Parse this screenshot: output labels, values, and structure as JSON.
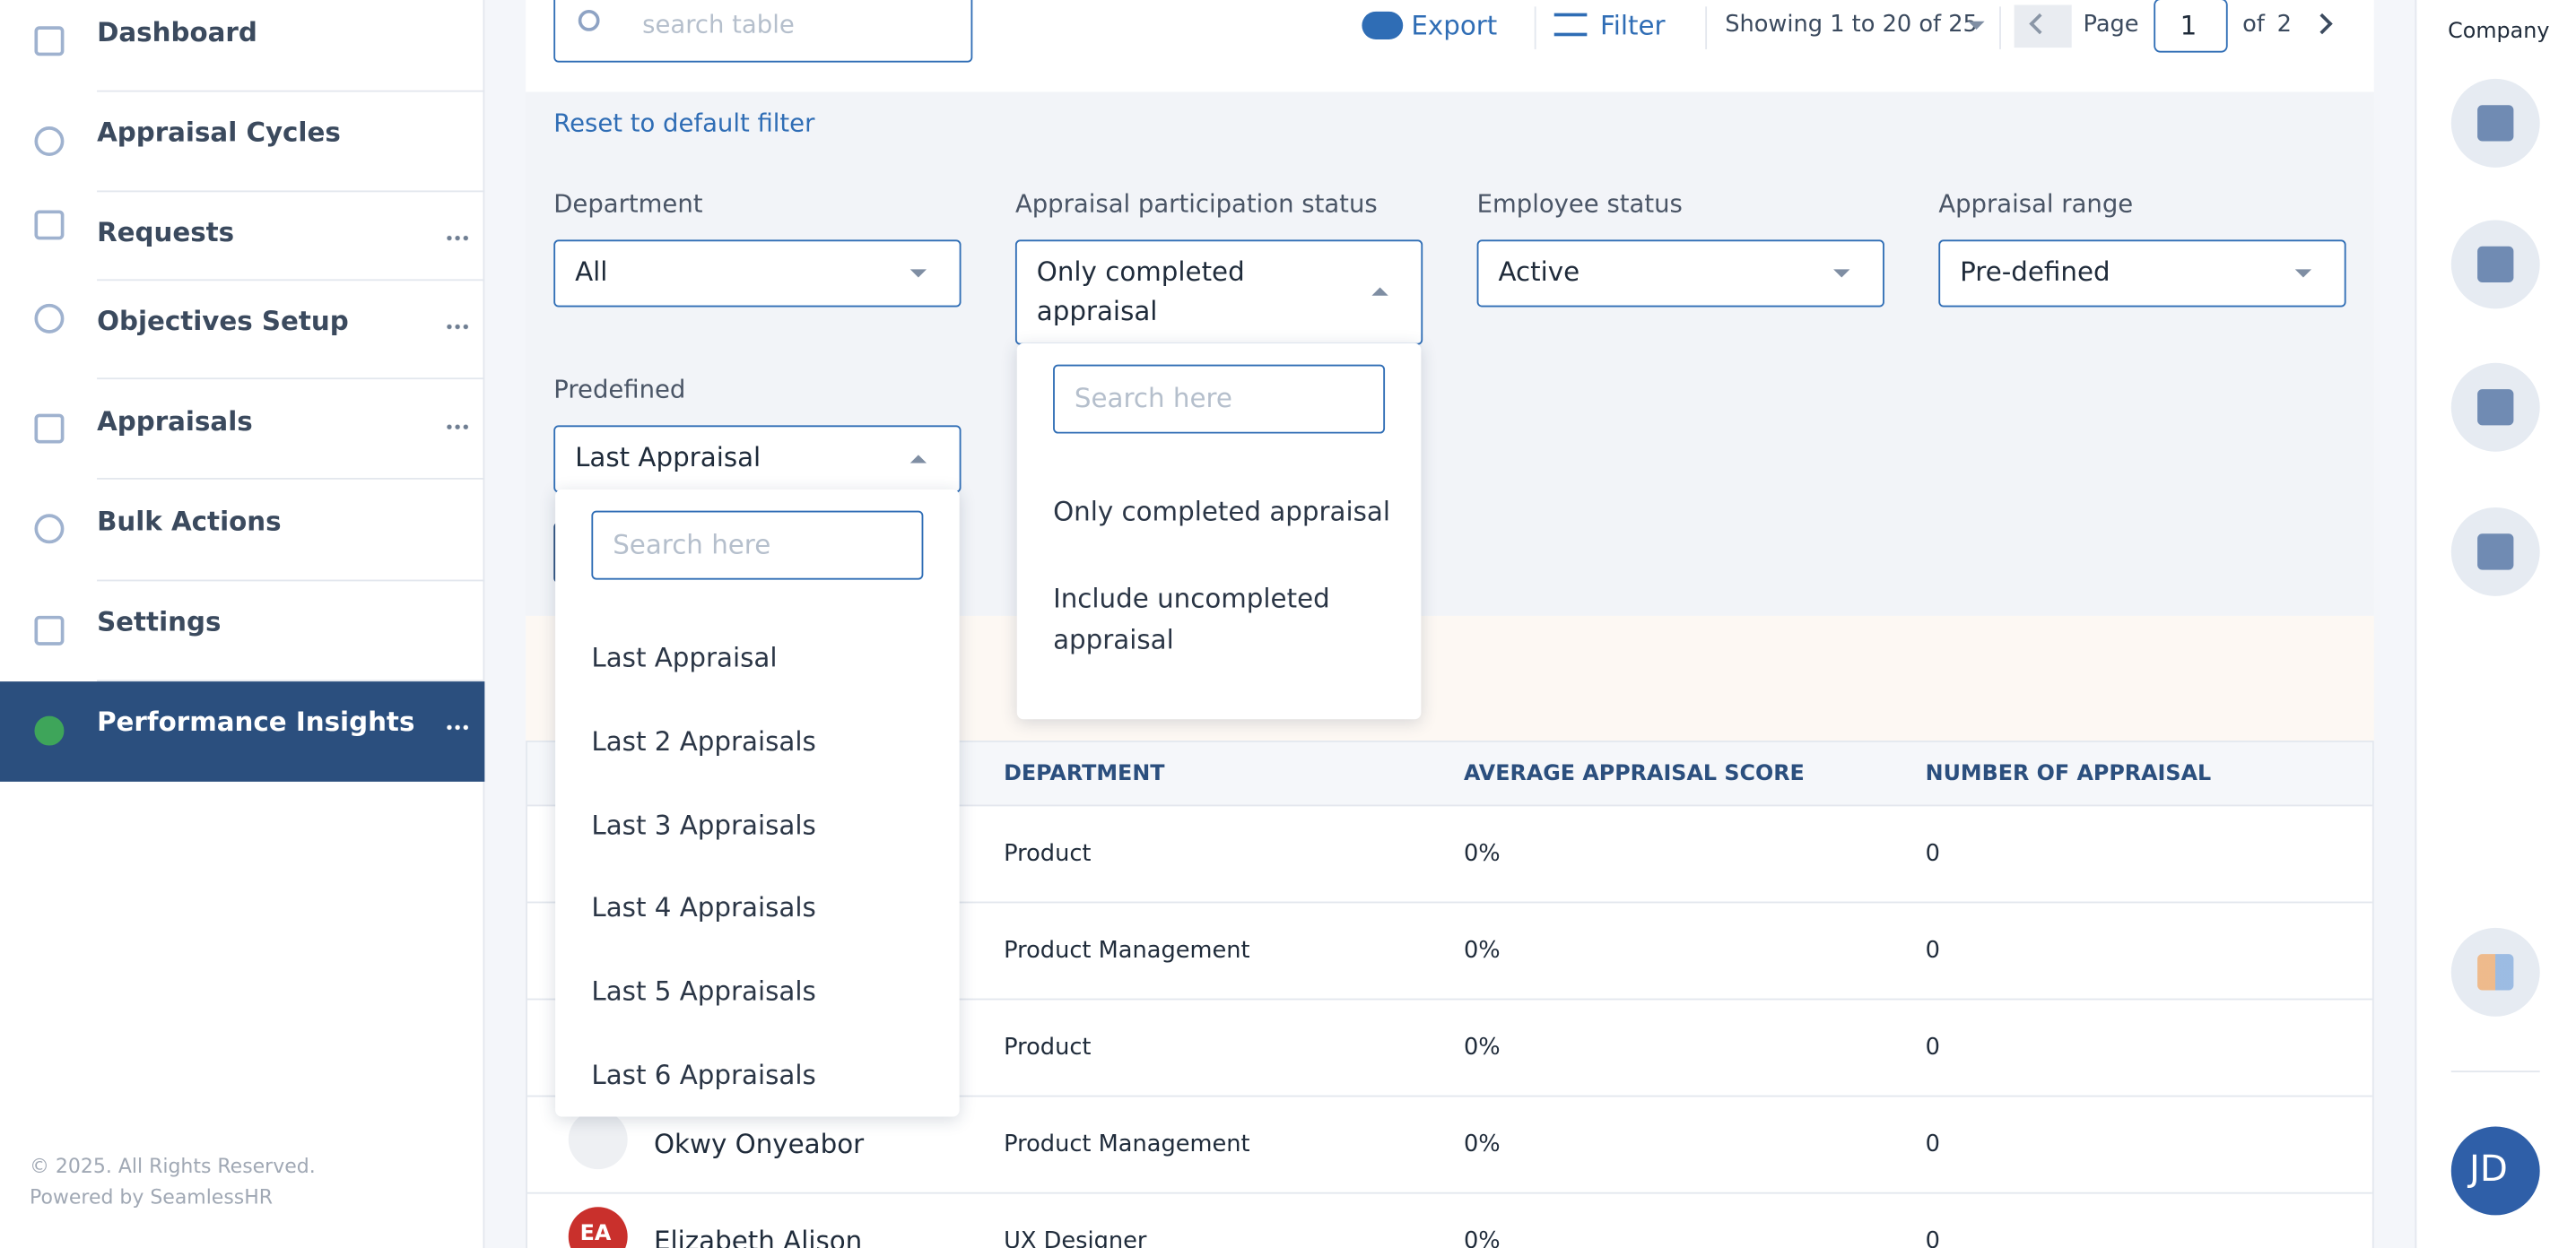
{
  "sidebar": {
    "items": [
      "Dashboard",
      "Appraisal Cycles",
      "Requests",
      "Objectives Setup",
      "Appraisals",
      "Bulk Actions",
      "Settings",
      "Performance Insights"
    ],
    "footer": [
      "© 2025. All Rights Reserved.",
      "Powered by SeamlessHR"
    ]
  },
  "toolbar": {
    "search_placeholder": "search table",
    "export": "Export",
    "filter": "Filter",
    "showing": "Showing 1 to 20 of 25",
    "page_label": "Page",
    "page": "1",
    "of": "of",
    "total_pages": "2"
  },
  "reset": "Reset to default filter",
  "filters": [
    {
      "label": "Department",
      "value": "All"
    },
    {
      "label": "Appraisal participation status",
      "value": "Only completed appraisal"
    },
    {
      "label": "Employee status",
      "value": "Active"
    },
    {
      "label": "Appraisal range",
      "value": "Pre-defined"
    },
    {
      "label": "Predefined",
      "value": "Last Appraisal"
    }
  ],
  "predefined_dropdown": {
    "placeholder": "Search here",
    "options": [
      "Last Appraisal",
      "Last 2 Appraisals",
      "Last 3 Appraisals",
      "Last 4 Appraisals",
      "Last 5 Appraisals",
      "Last 6 Appraisals"
    ]
  },
  "participation_dropdown": {
    "placeholder": "Search here",
    "options": [
      "Only completed appraisal",
      "Include uncompleted appraisal"
    ]
  },
  "table": {
    "headers": [
      "DEPARTMENT",
      "AVERAGE APPRAISAL SCORE",
      "NUMBER OF APPRAISAL"
    ],
    "rows": [
      {
        "name": null,
        "initials": null,
        "department": "Product",
        "score": "0%",
        "count": "0"
      },
      {
        "name": null,
        "initials": null,
        "department": "Product Management",
        "score": "0%",
        "count": "0"
      },
      {
        "name": null,
        "initials": null,
        "department": "Product",
        "score": "0%",
        "count": "0"
      },
      {
        "name": "Okwy Onyeabor",
        "initials": null,
        "department": "Product Management",
        "score": "0%",
        "count": "0"
      },
      {
        "name": "Elizabeth Alison",
        "initials": "EA",
        "department": "UX Designer",
        "score": "0%",
        "count": "0"
      }
    ]
  },
  "right_rail": {
    "title": "Company",
    "avatar": "JD"
  }
}
